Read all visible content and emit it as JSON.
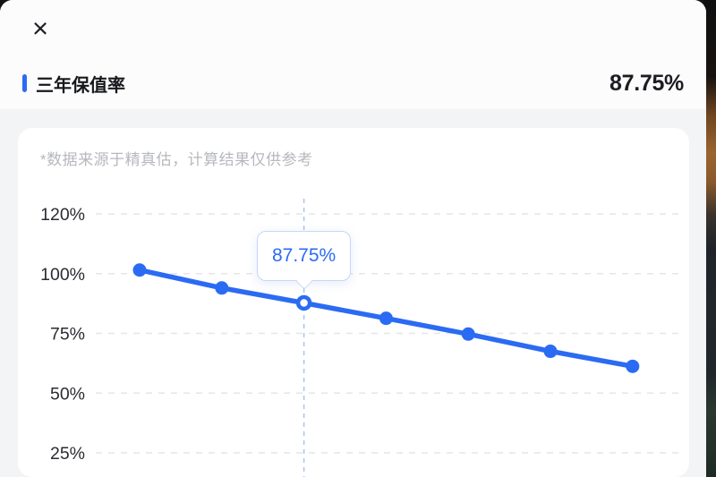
{
  "header": {
    "close_icon": "×",
    "title": "三年保值率",
    "value": "87.75%"
  },
  "card": {
    "disclaimer": "*数据来源于精真估，计算结果仅供参考"
  },
  "colors": {
    "accent_blue": "#2B6BF3",
    "grid_gray": "#E4E6EA",
    "guide_blue": "#A9C3F1",
    "axis_text": "#2B2C31",
    "value_text": "#1C1D21",
    "muted_text": "#B5B8BD",
    "tooltip_border": "#C7D7F8"
  },
  "chart_data": {
    "type": "line",
    "title": "三年保值率",
    "y_ticks": [
      "120%",
      "100%",
      "75%",
      "50%",
      "25%"
    ],
    "y_tick_values": [
      120,
      100,
      75,
      50,
      25
    ],
    "series": [
      {
        "name": "保值率",
        "values": [
          101.2,
          94.0,
          87.75,
          81.3,
          74.7,
          67.5,
          61.2
        ]
      }
    ],
    "active_index": 2,
    "active_value": 87.75,
    "tooltip": "87.75%",
    "grid": "dashed horizontal",
    "guide_line": "dashed vertical at active point",
    "legend": "none",
    "x_axis_labels_visible": false
  }
}
